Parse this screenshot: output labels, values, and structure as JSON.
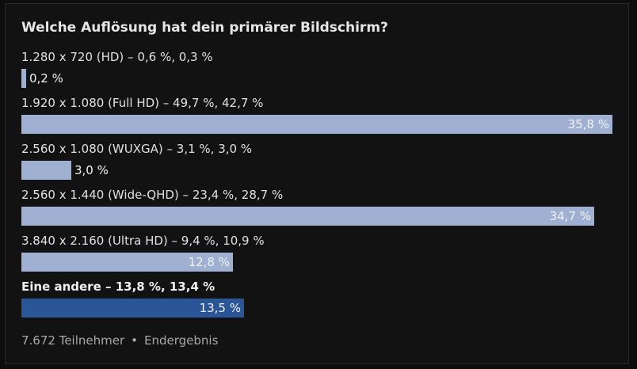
{
  "poll": {
    "title": "Welche Auflösung hat dein primärer Bildschirm?",
    "participants": "7.672 Teilnehmer",
    "separator": "•",
    "status": "Endergebnis"
  },
  "colors": {
    "bar_default": "#9fb0d3",
    "bar_winner": "#2a5596",
    "background": "#121212",
    "text": "#e0e0e0"
  },
  "chart_data": {
    "type": "bar",
    "orientation": "horizontal",
    "title": "Welche Auflösung hat dein primärer Bildschirm?",
    "xlim": [
      0,
      35.8
    ],
    "categories": [
      "1.280 x 720 (HD) – 0,6 %, 0,3 %",
      "1.920 x 1.080 (Full HD) – 49,7 %, 42,7 %",
      "2.560 x 1.080 (WUXGA) – 3,1 %, 3,0 %",
      "2.560 x 1.440 (Wide-QHD) – 23,4 %, 28,7 %",
      "3.840 x 2.160 (Ultra HD) – 9,4 %, 10,9 %",
      "Eine andere – 13,8 %, 13,4 %"
    ],
    "values": [
      0.2,
      35.8,
      3.0,
      34.7,
      12.8,
      13.5
    ],
    "value_labels": [
      "0,2 %",
      "35,8 %",
      "3,0 %",
      "34,7 %",
      "12,8 %",
      "13,5 %"
    ],
    "highlighted": [
      false,
      false,
      false,
      false,
      false,
      true
    ]
  }
}
